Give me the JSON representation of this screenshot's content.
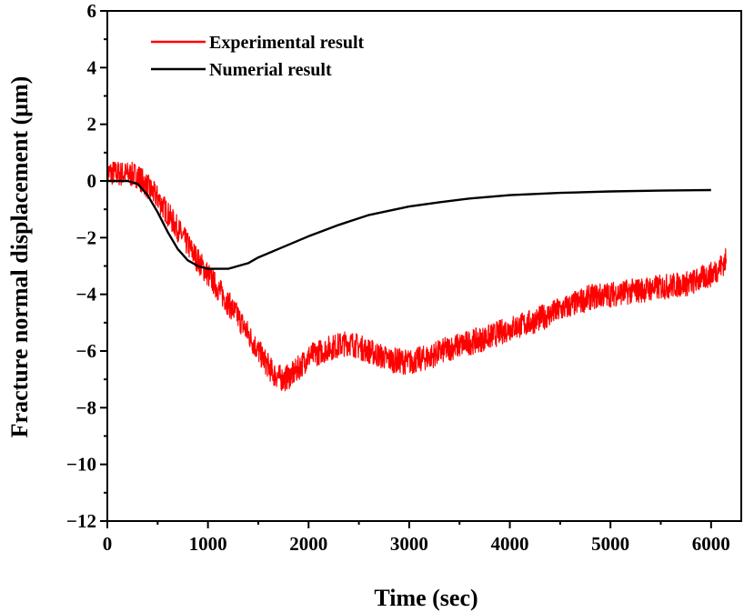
{
  "chart_data": {
    "type": "line",
    "xlabel": "Time (sec)",
    "ylabel": "Fracture normal displacement (μm)",
    "xlim": [
      0,
      6300
    ],
    "ylim": [
      -12,
      6
    ],
    "xticks": [
      0,
      1000,
      2000,
      3000,
      4000,
      5000,
      6000
    ],
    "yticks": [
      -12,
      -10,
      -8,
      -6,
      -4,
      -2,
      0,
      2,
      4,
      6
    ],
    "legend_position": "top-left",
    "grid": false,
    "series": [
      {
        "name": "Experimental result",
        "color": "#ff0000",
        "noise_amplitude": 0.45,
        "x": [
          0,
          300,
          500,
          700,
          900,
          1100,
          1300,
          1500,
          1650,
          1750,
          1850,
          2000,
          2200,
          2400,
          2600,
          2800,
          3000,
          3200,
          3400,
          3600,
          3800,
          4000,
          4200,
          4400,
          4600,
          4800,
          5000,
          5200,
          5400,
          5600,
          5800,
          6000,
          6100,
          6150
        ],
        "y": [
          0.3,
          0.2,
          -0.6,
          -1.7,
          -2.8,
          -3.8,
          -4.8,
          -6.0,
          -6.8,
          -7.0,
          -6.8,
          -6.2,
          -5.9,
          -5.7,
          -6.0,
          -6.3,
          -6.4,
          -6.2,
          -5.9,
          -5.7,
          -5.5,
          -5.2,
          -5.0,
          -4.7,
          -4.4,
          -4.1,
          -4.0,
          -3.9,
          -3.8,
          -3.7,
          -3.6,
          -3.3,
          -3.0,
          -2.8
        ]
      },
      {
        "name": "Numerial result",
        "color": "#000000",
        "x": [
          0,
          200,
          300,
          400,
          500,
          600,
          700,
          800,
          900,
          1000,
          1100,
          1200,
          1300,
          1400,
          1500,
          1700,
          2000,
          2300,
          2600,
          3000,
          3300,
          3600,
          4000,
          4500,
          5000,
          5500,
          6000
        ],
        "y": [
          0,
          0,
          -0.1,
          -0.5,
          -1.1,
          -1.8,
          -2.4,
          -2.8,
          -3.0,
          -3.1,
          -3.1,
          -3.1,
          -3.0,
          -2.9,
          -2.7,
          -2.4,
          -1.95,
          -1.55,
          -1.2,
          -0.9,
          -0.75,
          -0.62,
          -0.5,
          -0.42,
          -0.37,
          -0.34,
          -0.32
        ]
      }
    ]
  }
}
